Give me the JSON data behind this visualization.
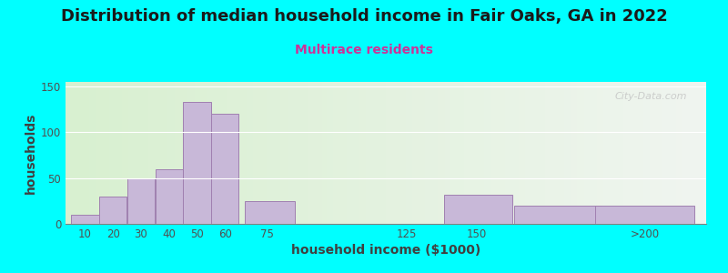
{
  "title": "Distribution of median household income in Fair Oaks, GA in 2022",
  "subtitle": "Multirace residents",
  "xlabel": "household income ($1000)",
  "ylabel": "households",
  "background_outer": "#00FFFF",
  "background_inner": "#d8f0d0",
  "bar_color": "#c8b8d8",
  "bar_edge_color": "#a080b0",
  "title_fontsize": 13,
  "subtitle_fontsize": 10,
  "subtitle_color": "#cc3399",
  "xlabel_fontsize": 10,
  "ylabel_fontsize": 10,
  "bar_lefts": [
    5,
    15,
    25,
    35,
    45,
    55,
    67,
    138,
    163,
    192
  ],
  "bar_rights": [
    15,
    25,
    35,
    45,
    55,
    65,
    85,
    163,
    195,
    228
  ],
  "bar_heights": [
    10,
    30,
    50,
    60,
    133,
    120,
    25,
    32,
    20,
    20
  ],
  "ylim": [
    0,
    155
  ],
  "yticks": [
    0,
    50,
    100,
    150
  ],
  "xlim": [
    3,
    232
  ],
  "tick_positions": [
    10,
    20,
    30,
    40,
    50,
    60,
    75,
    125,
    150,
    210
  ],
  "tick_labels": [
    "10",
    "20",
    "30",
    "40",
    "50",
    "60",
    "75",
    "125",
    "150",
    ">200"
  ],
  "watermark_text": "City-Data.com"
}
